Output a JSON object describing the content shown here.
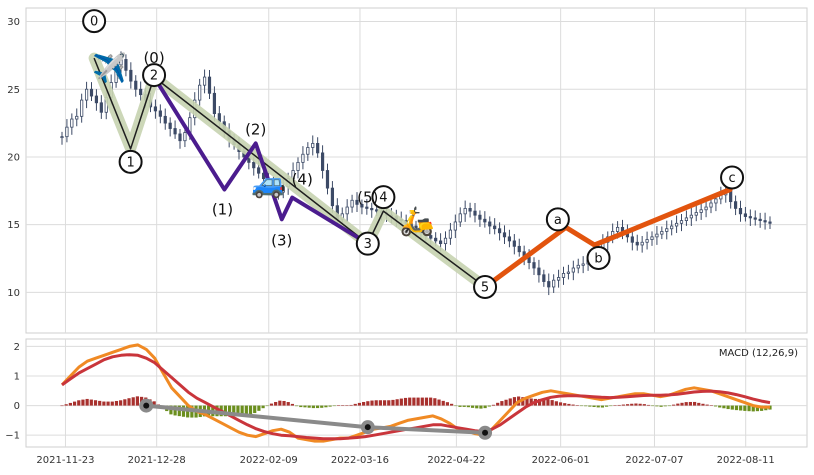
{
  "chart_data": {
    "type": "candlestick-elliott",
    "grid": true,
    "price_panel": {
      "ylim": [
        7,
        31
      ],
      "yticks": [
        "10",
        "15",
        "20",
        "25",
        "30"
      ],
      "ytick_values": [
        10,
        15,
        20,
        25,
        30
      ],
      "candles_close": [
        21.5,
        22.2,
        22.8,
        23.0,
        24.2,
        25.0,
        24.5,
        24.0,
        23.3,
        24.4,
        25.5,
        26.8,
        27.2,
        26.4,
        25.6,
        25.0,
        24.6,
        24.2,
        23.7,
        23.4,
        23.0,
        22.5,
        22.1,
        21.7,
        21.2,
        21.8,
        22.9,
        24.2,
        25.3,
        25.9,
        24.7,
        23.2,
        22.6,
        21.9,
        21.3,
        20.9,
        20.4,
        20.0,
        19.6,
        19.2,
        18.8,
        18.4,
        18.0,
        17.7,
        17.4,
        17.8,
        18.4,
        19.0,
        19.6,
        20.2,
        20.7,
        21.0,
        20.3,
        19.0,
        17.7,
        16.4,
        15.4,
        15.8,
        16.3,
        16.8,
        16.5,
        16.3,
        16.2,
        16.1,
        16.0,
        15.9,
        15.7,
        15.6,
        15.4,
        15.3,
        15.1,
        14.9,
        14.6,
        14.4,
        14.2,
        14.0,
        13.8,
        13.6,
        14.0,
        14.6,
        15.2,
        15.8,
        16.2,
        16.0,
        15.7,
        15.4,
        15.2,
        14.9,
        14.7,
        14.4,
        14.1,
        13.8,
        13.4,
        13.0,
        12.6,
        12.2,
        11.8,
        11.3,
        10.8,
        10.4,
        10.9,
        11.1,
        11.4,
        11.5,
        11.8,
        12.0,
        12.1,
        12.4,
        12.6,
        13.0,
        13.7,
        14.1,
        14.5,
        14.8,
        14.5,
        14.1,
        13.7,
        13.5,
        13.7,
        13.9,
        14.1,
        14.3,
        14.5,
        14.7,
        14.9,
        15.1,
        15.3,
        15.5,
        15.7,
        15.9,
        16.1,
        16.3,
        16.6,
        16.9,
        17.2,
        17.5,
        16.7,
        16.2,
        15.8,
        15.6,
        15.5,
        15.4,
        15.3,
        15.2,
        15.1
      ],
      "waves": {
        "outer": [
          {
            "label": "0",
            "date": "2021-12-04",
            "value": 27.3
          },
          {
            "label": "1",
            "date": "2021-12-18",
            "value": 20.6
          },
          {
            "label": "2",
            "date": "2021-12-27",
            "value": 25.9
          },
          {
            "label": "3",
            "date": "2022-03-19",
            "value": 13.6
          },
          {
            "label": "4",
            "date": "2022-03-25",
            "value": 16.0
          },
          {
            "label": "5",
            "date": "2022-05-03",
            "value": 10.4
          }
        ],
        "inner": [
          {
            "label": "(0)",
            "date": "2021-12-27",
            "value": 25.9
          },
          {
            "label": "(1)",
            "date": "2022-01-23",
            "value": 17.6
          },
          {
            "label": "(2)",
            "date": "2022-02-04",
            "value": 21.0
          },
          {
            "label": "(3)",
            "date": "2022-02-14",
            "value": 15.4
          },
          {
            "label": "(4)",
            "date": "2022-02-18",
            "value": 17.0
          },
          {
            "label": "(5)",
            "date": "2022-03-19",
            "value": 13.6
          }
        ],
        "correction": [
          {
            "label": "5",
            "date": "2022-05-03",
            "value": 10.4
          },
          {
            "label": "a",
            "date": "2022-06-03",
            "value": 14.8
          },
          {
            "label": "b",
            "date": "2022-06-14",
            "value": 13.5
          },
          {
            "label": "c",
            "date": "2022-08-05",
            "value": 17.6
          }
        ]
      },
      "icons": [
        {
          "name": "airplane-icon",
          "glyph": "✈️",
          "date": "2021-12-10",
          "value": 26.6
        },
        {
          "name": "car-icon",
          "glyph": "🚙",
          "date": "2022-02-09",
          "value": 18.1
        },
        {
          "name": "scooter-icon",
          "glyph": "🛵",
          "date": "2022-04-07",
          "value": 15.3
        }
      ]
    },
    "macd_panel": {
      "title": "MACD (12,26,9)",
      "ylim": [
        -1.4,
        2.25
      ],
      "yticks": [
        "−1",
        "0",
        "1",
        "2"
      ],
      "ytick_values": [
        -1,
        0,
        1,
        2
      ],
      "macd": [
        0.7,
        1.0,
        1.3,
        1.5,
        1.6,
        1.7,
        1.8,
        1.9,
        2.0,
        2.05,
        1.9,
        1.6,
        1.1,
        0.6,
        0.3,
        0.0,
        -0.2,
        -0.3,
        -0.45,
        -0.6,
        -0.75,
        -0.9,
        -1.0,
        -1.05,
        -0.95,
        -0.85,
        -0.8,
        -0.9,
        -1.1,
        -1.15,
        -1.2,
        -1.2,
        -1.15,
        -1.1,
        -1.1,
        -1.0,
        -0.9,
        -0.8,
        -0.75,
        -0.7,
        -0.6,
        -0.5,
        -0.45,
        -0.4,
        -0.35,
        -0.45,
        -0.6,
        -0.8,
        -0.85,
        -0.95,
        -1.0,
        -0.8,
        -0.5,
        -0.2,
        0.1,
        0.25,
        0.35,
        0.45,
        0.5,
        0.45,
        0.4,
        0.35,
        0.3,
        0.25,
        0.2,
        0.25,
        0.3,
        0.35,
        0.4,
        0.4,
        0.35,
        0.3,
        0.35,
        0.45,
        0.55,
        0.6,
        0.55,
        0.5,
        0.4,
        0.3,
        0.2,
        0.1,
        0.0,
        -0.05,
        -0.05
      ],
      "signal": [
        0.7,
        0.9,
        1.1,
        1.25,
        1.4,
        1.55,
        1.65,
        1.7,
        1.72,
        1.7,
        1.6,
        1.45,
        1.2,
        0.95,
        0.7,
        0.45,
        0.25,
        0.1,
        -0.05,
        -0.2,
        -0.35,
        -0.5,
        -0.65,
        -0.78,
        -0.88,
        -0.95,
        -1.0,
        -1.02,
        -1.05,
        -1.08,
        -1.1,
        -1.12,
        -1.12,
        -1.12,
        -1.1,
        -1.08,
        -1.05,
        -1.0,
        -0.95,
        -0.9,
        -0.85,
        -0.8,
        -0.75,
        -0.7,
        -0.65,
        -0.65,
        -0.7,
        -0.75,
        -0.8,
        -0.85,
        -0.88,
        -0.8,
        -0.65,
        -0.45,
        -0.25,
        -0.05,
        0.1,
        0.2,
        0.28,
        0.32,
        0.33,
        0.33,
        0.32,
        0.3,
        0.28,
        0.27,
        0.28,
        0.3,
        0.32,
        0.34,
        0.35,
        0.35,
        0.36,
        0.38,
        0.42,
        0.46,
        0.48,
        0.49,
        0.47,
        0.43,
        0.37,
        0.3,
        0.22,
        0.15,
        0.1
      ],
      "trendline": [
        {
          "date": "2021-12-24",
          "value": 0.0
        },
        {
          "date": "2022-03-19",
          "value": -0.73
        },
        {
          "date": "2022-05-03",
          "value": -0.92
        }
      ]
    },
    "x_axis": {
      "start_date": "2021-11-14",
      "end_date": "2022-08-28",
      "tick_labels": [
        "2021-11-23",
        "2021-12-28",
        "2022-02-09",
        "2022-03-16",
        "2022-04-22",
        "2022-06-01",
        "2022-07-07",
        "2022-08-11"
      ]
    },
    "colors": {
      "candle": "#3c4a66",
      "outer_wave_fill": "#c7d3b0",
      "outer_wave_line": "#1e1e1e",
      "inner_wave": "#4b1c8e",
      "correction": "#e2540e",
      "macd_line": "#f08a24",
      "signal_line": "#c9353b",
      "hist_positive": "#a8302d",
      "hist_negative": "#6b8f1e",
      "trendline": "#8a8a8a"
    }
  }
}
